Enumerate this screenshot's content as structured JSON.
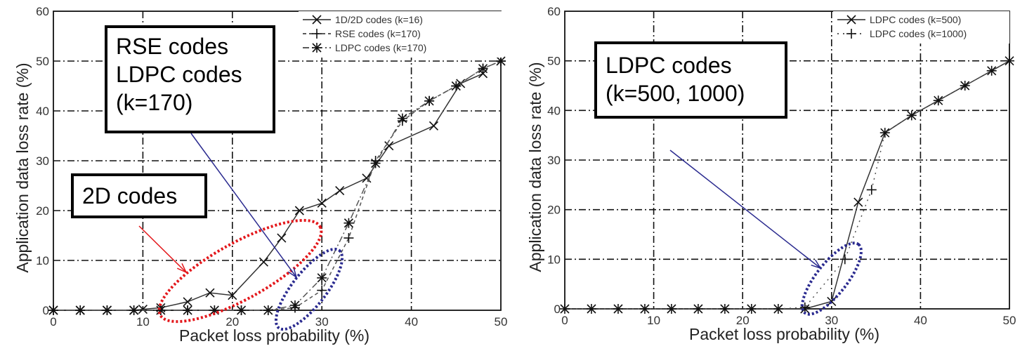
{
  "chart_data": [
    {
      "id": "left",
      "type": "line",
      "xlabel": "Packet loss probability (%)",
      "ylabel": "Application data loss rate (%)",
      "xlim": [
        0,
        50
      ],
      "ylim": [
        0,
        60
      ],
      "xticks": [
        "0",
        "10",
        "20",
        "30",
        "40",
        "50"
      ],
      "yticks": [
        "0",
        "10",
        "20",
        "30",
        "40",
        "50",
        "60"
      ],
      "grid": true,
      "legend_position": "top-right",
      "series": [
        {
          "name": "1D/2D codes (k=16)",
          "style": "solid",
          "marker": "x",
          "x": [
            0,
            3,
            6,
            9,
            10,
            12,
            15,
            17.5,
            20,
            23.5,
            25.5,
            27.5,
            30,
            32,
            35,
            37.5,
            42.5,
            45.5,
            48
          ],
          "y": [
            0,
            0,
            0,
            0,
            0.2,
            0.5,
            1.7,
            3.5,
            3,
            9.7,
            14.5,
            20,
            21.5,
            24,
            26.5,
            33,
            37,
            45.5,
            47.5
          ]
        },
        {
          "name": "RSE codes (k=170)",
          "style": "dashed",
          "marker": "+",
          "x": [
            0,
            3,
            6,
            9,
            12,
            15,
            18,
            21,
            24,
            27,
            30,
            33,
            36,
            39,
            42,
            45,
            48,
            50
          ],
          "y": [
            0,
            0,
            0,
            0,
            0,
            0,
            0,
            0,
            0,
            0.5,
            4,
            14.5,
            30,
            38,
            42,
            45,
            48.5,
            50
          ]
        },
        {
          "name": "LDPC codes (k=170)",
          "style": "dashdot",
          "marker": "*",
          "x": [
            0,
            3,
            6,
            9,
            12,
            15,
            18,
            21,
            24,
            27,
            30,
            33,
            36,
            39,
            42,
            45,
            48,
            50
          ],
          "y": [
            0,
            0,
            0,
            0,
            0,
            0,
            0,
            0,
            0,
            1,
            6.5,
            17.5,
            29.5,
            38.5,
            42,
            45,
            48.5,
            50
          ]
        }
      ],
      "annotations": [
        {
          "text": "RSE codes\nLDPC codes\n(k=170)",
          "color": "#000000"
        },
        {
          "text": "2D codes",
          "color": "#000000"
        }
      ],
      "highlights": [
        {
          "label": "2D codes region",
          "color": "#e3171b"
        },
        {
          "label": "RSE/LDPC k=170 region",
          "color": "#2a2a8f"
        }
      ]
    },
    {
      "id": "right",
      "type": "line",
      "xlabel": "Packet loss probability (%)",
      "ylabel": "Application data loss rate (%)",
      "xlim": [
        0,
        50
      ],
      "ylim": [
        0,
        60
      ],
      "xticks": [
        "0",
        "10",
        "20",
        "30",
        "40",
        "50"
      ],
      "yticks": [
        "0",
        "10",
        "20",
        "30",
        "40",
        "50",
        "60"
      ],
      "grid": true,
      "legend_position": "top-right",
      "series": [
        {
          "name": "LDPC codes (k=500)",
          "style": "solid",
          "marker": "x",
          "x": [
            0,
            3,
            6,
            9,
            12,
            15,
            18,
            21,
            24,
            27,
            30,
            33,
            36,
            39,
            42,
            45,
            48,
            50
          ],
          "y": [
            0,
            0,
            0,
            0,
            0,
            0,
            0,
            0,
            0,
            0,
            1.5,
            21.5,
            35.5,
            39,
            42,
            45,
            48,
            50
          ]
        },
        {
          "name": "LDPC codes (k=1000)",
          "style": "dotted",
          "marker": "+",
          "x": [
            0,
            3,
            6,
            9,
            12,
            15,
            18,
            21,
            24,
            27,
            31.5,
            34.5,
            36,
            39,
            42,
            45,
            48,
            50
          ],
          "y": [
            0,
            0,
            0,
            0,
            0,
            0,
            0,
            0,
            0,
            0.3,
            10,
            24,
            35.5,
            39,
            42,
            45,
            48,
            50
          ]
        }
      ],
      "annotations": [
        {
          "text": "LDPC codes\n(k=500, 1000)",
          "color": "#000000"
        }
      ],
      "highlights": [
        {
          "label": "transition region",
          "color": "#2a2a8f"
        }
      ]
    }
  ]
}
